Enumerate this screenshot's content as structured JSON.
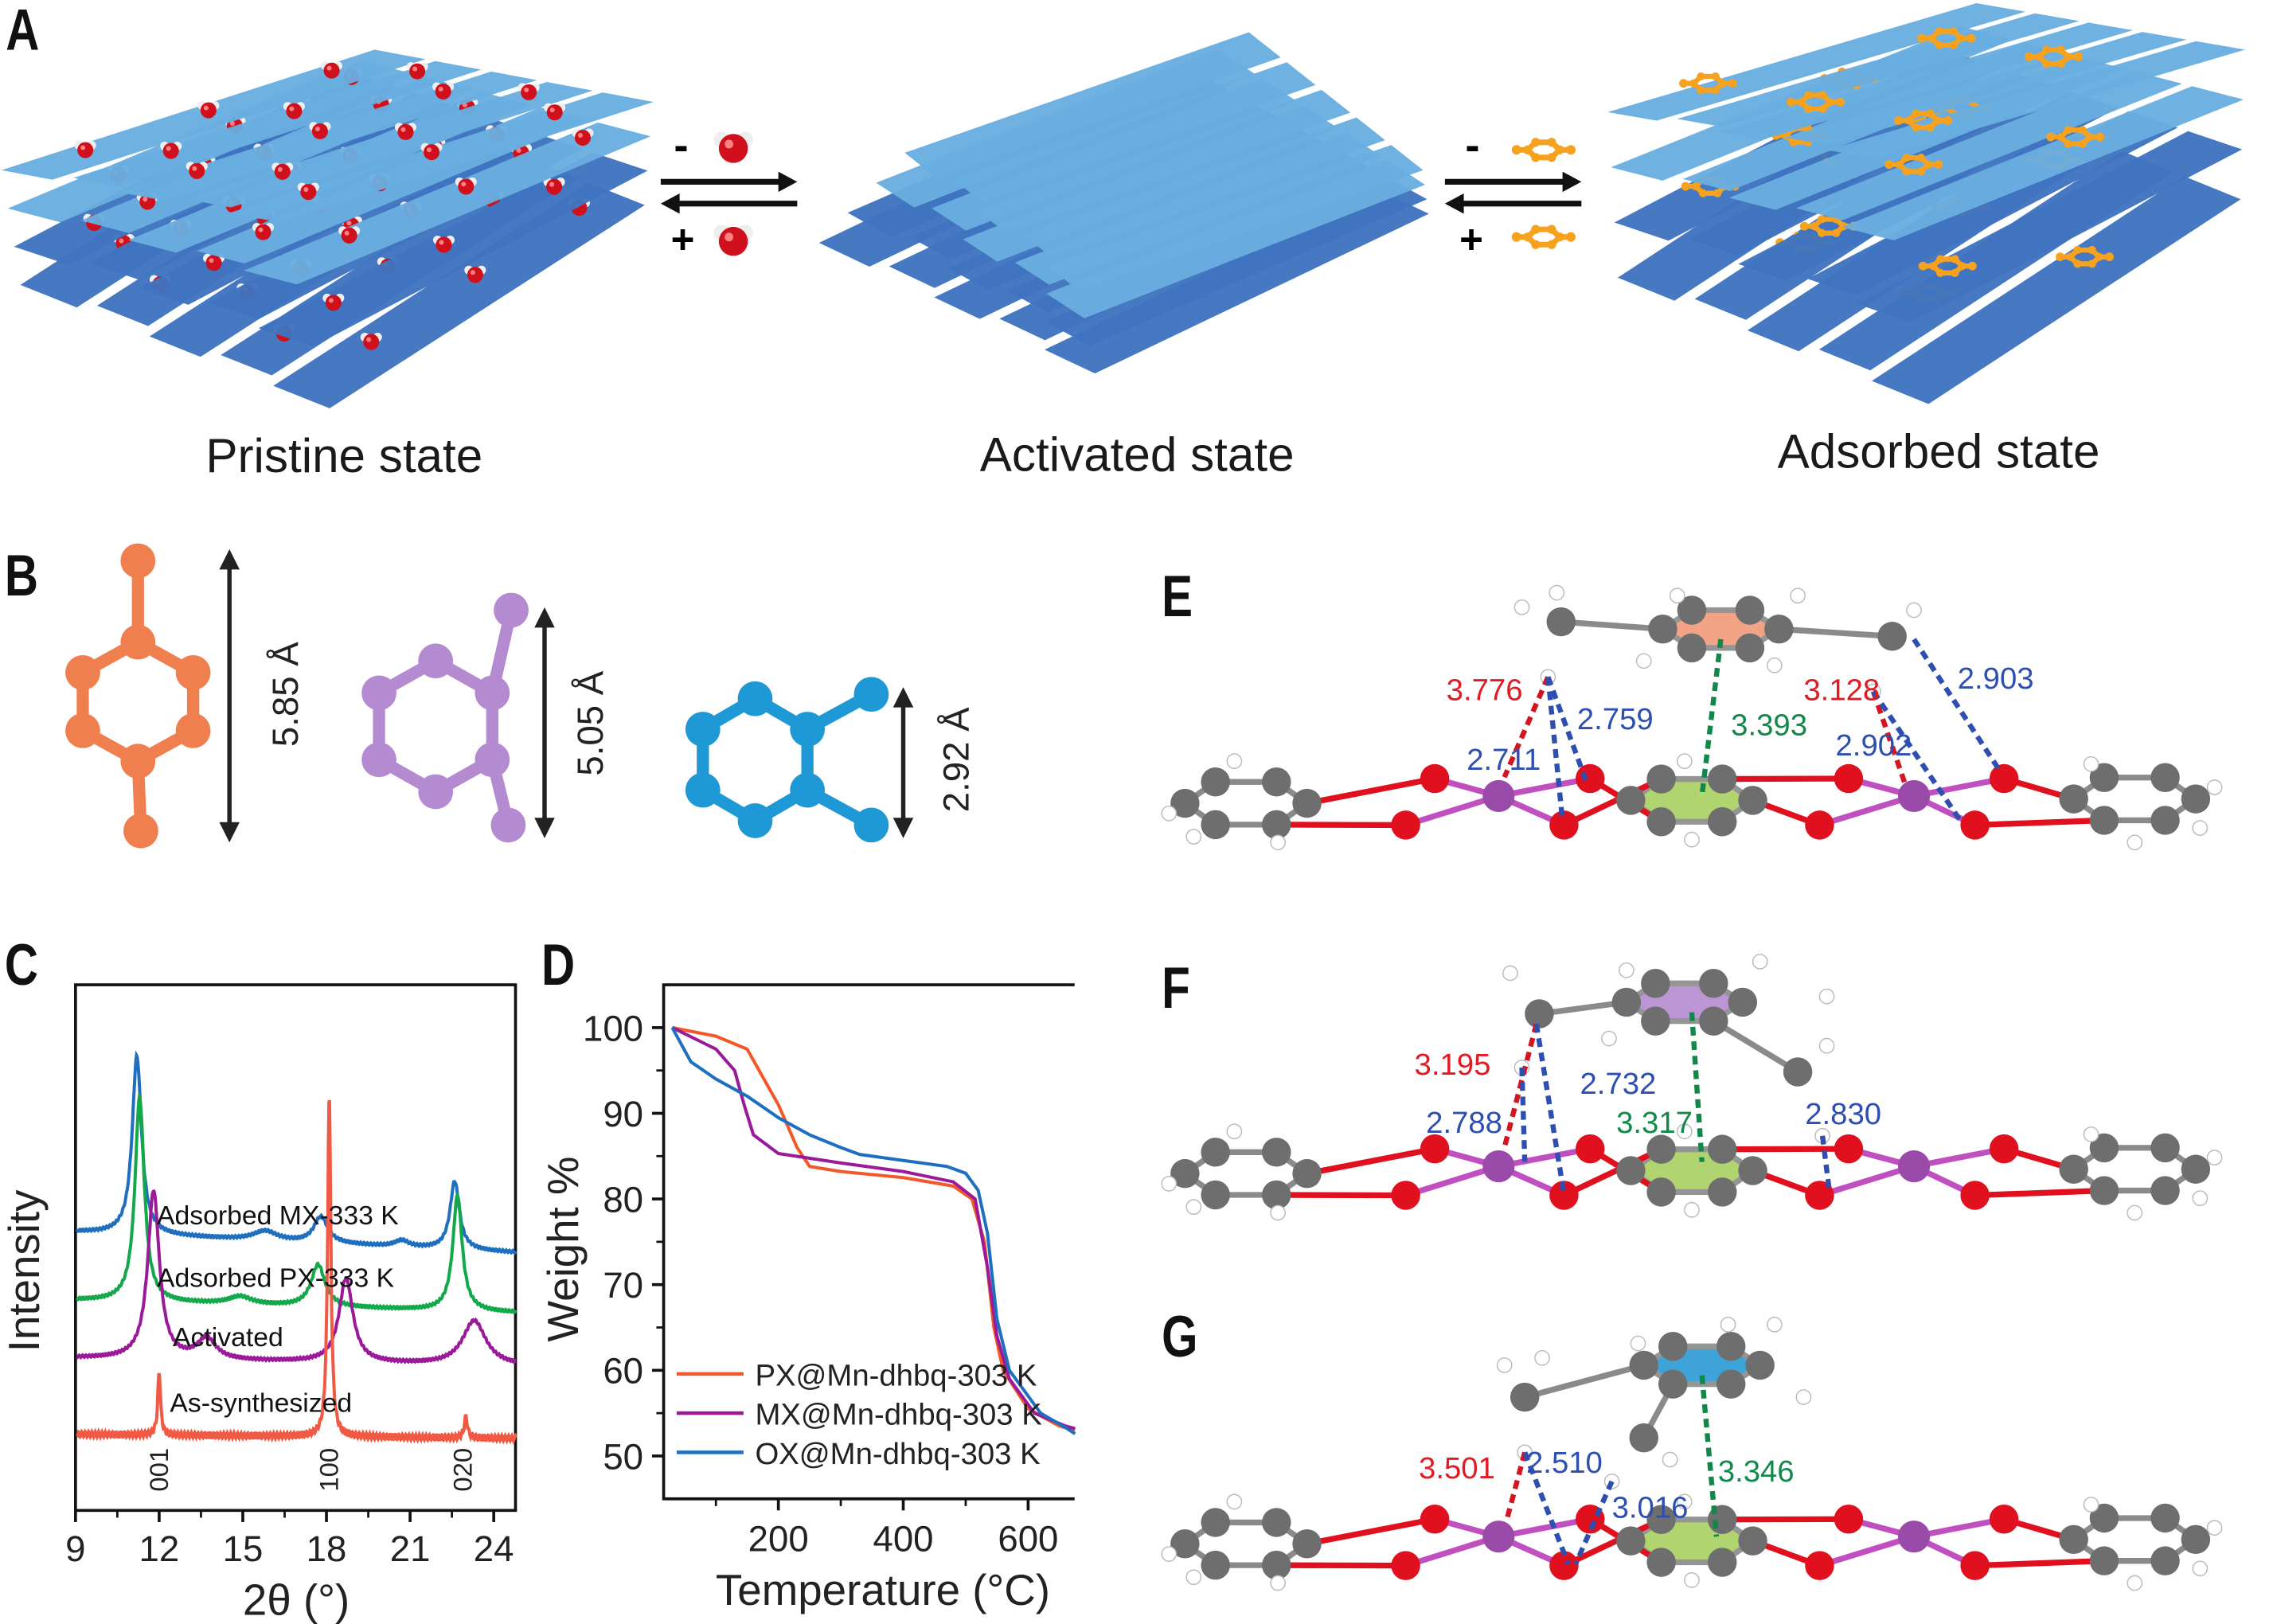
{
  "panel_labels": {
    "A": "A",
    "B": "B",
    "C": "C",
    "D": "D",
    "E": "E",
    "F": "F",
    "G": "G"
  },
  "panel_a": {
    "states": [
      "Pristine state",
      "Activated state",
      "Adsorbed state"
    ],
    "water_step": {
      "remove": "-",
      "add": "+"
    },
    "xylene_step": {
      "remove": "-",
      "add": "+"
    }
  },
  "panel_b": {
    "molecules": [
      {
        "name": "p-xylene",
        "color": "#f07f4f",
        "dimension": "5.85 Å"
      },
      {
        "name": "m-xylene",
        "color": "#b48ad0",
        "dimension": "5.05 Å"
      },
      {
        "name": "o-xylene",
        "color": "#1f98d6",
        "dimension": "2.92 Å"
      }
    ]
  },
  "panel_efg": {
    "E": {
      "guest_color": "#f29a7a",
      "distances": [
        "3.776",
        "2.759",
        "2.711",
        "3.393",
        "3.128",
        "2.903",
        "2.902"
      ]
    },
    "F": {
      "guest_color": "#b48ad0",
      "distances": [
        "3.195",
        "2.732",
        "2.788",
        "3.317",
        "2.830"
      ]
    },
    "G": {
      "guest_color": "#2a9bd3",
      "distances": [
        "3.501",
        "2.510",
        "3.016",
        "3.346"
      ]
    }
  },
  "colors": {
    "sheet_light": "#69aee0",
    "sheet_dark": "#3f74bf",
    "oxygen": "#e0101e",
    "carbon": "#6b6b6b",
    "manganese": "#9a4aa8",
    "hydrogen": "#ffffff",
    "host_ring": "#a8d060",
    "xylene": "#f6a21e"
  },
  "chart_data": [
    {
      "id": "C",
      "type": "line",
      "title": "",
      "xlabel": "2θ (°)",
      "ylabel": "Intensity",
      "xlim": [
        9,
        24.8
      ],
      "ylim": [
        0,
        100
      ],
      "xticks": [
        9,
        12,
        15,
        18,
        21,
        24
      ],
      "grid": false,
      "series": [
        {
          "name": "Adsorbed MX-333 K",
          "color": "#1f6fc0",
          "baseline": 53,
          "slope": -0.25,
          "peaks": [
            [
              11.2,
              34,
              0.2
            ],
            [
              15.8,
              1.8,
              0.5
            ],
            [
              17.8,
              5,
              0.3
            ],
            [
              20.7,
              1.2,
              0.3
            ],
            [
              22.6,
              13,
              0.2
            ]
          ]
        },
        {
          "name": "Adsorbed PX-333 K",
          "color": "#13a84a",
          "baseline": 40,
          "slope": -0.15,
          "peaks": [
            [
              11.3,
              39,
              0.2
            ],
            [
              14.9,
              1.5,
              0.5
            ],
            [
              17.7,
              8,
              0.3
            ],
            [
              22.7,
              22,
              0.2
            ]
          ]
        },
        {
          "name": "Activated",
          "color": "#9a1a9a",
          "baseline": 29,
          "slope": -0.1,
          "peaks": [
            [
              11.8,
              32,
              0.25
            ],
            [
              13.7,
              4,
              0.4
            ],
            [
              18.7,
              16,
              0.3
            ],
            [
              23.3,
              8.5,
              0.5
            ]
          ]
        },
        {
          "name": "As-synthesized",
          "color": "#f05a44",
          "baseline": 14.5,
          "slope": -0.05,
          "peaks": [
            [
              12.0,
              12,
              0.06
            ],
            [
              18.1,
              65,
              0.07
            ],
            [
              23.0,
              4,
              0.07
            ]
          ]
        }
      ],
      "annotations": [
        {
          "text": "001",
          "x": 12.0
        },
        {
          "text": "100",
          "x": 18.1
        },
        {
          "text": "020",
          "x": 22.9
        }
      ]
    },
    {
      "id": "D",
      "type": "line",
      "title": "",
      "xlabel": "Temperature (°C)",
      "ylabel": "Weight %",
      "xlim": [
        16,
        675
      ],
      "ylim": [
        45,
        105
      ],
      "xticks": [
        200,
        400,
        600
      ],
      "yticks": [
        50,
        60,
        70,
        80,
        90,
        100
      ],
      "grid": false,
      "legend": "bottom-left",
      "series": [
        {
          "name": "PX@Mn-dhbq-303 K",
          "color": "#f2592a",
          "x": [
            30,
            100,
            150,
            200,
            230,
            250,
            300,
            400,
            480,
            510,
            530,
            545,
            560,
            600,
            650,
            675
          ],
          "y": [
            100,
            99,
            97.5,
            91,
            86,
            83.8,
            83.2,
            82.5,
            81.5,
            80,
            75,
            65,
            60,
            55.5,
            53.5,
            53
          ]
        },
        {
          "name": "MX@Mn-dhbq-303 K",
          "color": "#9a1a9a",
          "x": [
            30,
            100,
            130,
            145,
            160,
            200,
            300,
            400,
            480,
            515,
            535,
            550,
            570,
            610,
            660,
            675
          ],
          "y": [
            100,
            97.5,
            95,
            91,
            87.5,
            85.3,
            84.2,
            83.2,
            82,
            80,
            72,
            64,
            59,
            55,
            53.5,
            53.2
          ]
        },
        {
          "name": "OX@Mn-dhbq-303 K",
          "color": "#1f6fc0",
          "x": [
            30,
            60,
            100,
            150,
            200,
            250,
            300,
            330,
            400,
            470,
            500,
            520,
            535,
            550,
            570,
            620,
            660,
            675
          ],
          "y": [
            100,
            96,
            94,
            92,
            89.5,
            87.5,
            86,
            85.2,
            84.5,
            83.8,
            83,
            81,
            76,
            66,
            60,
            55,
            53.3,
            52.6
          ]
        }
      ]
    }
  ]
}
